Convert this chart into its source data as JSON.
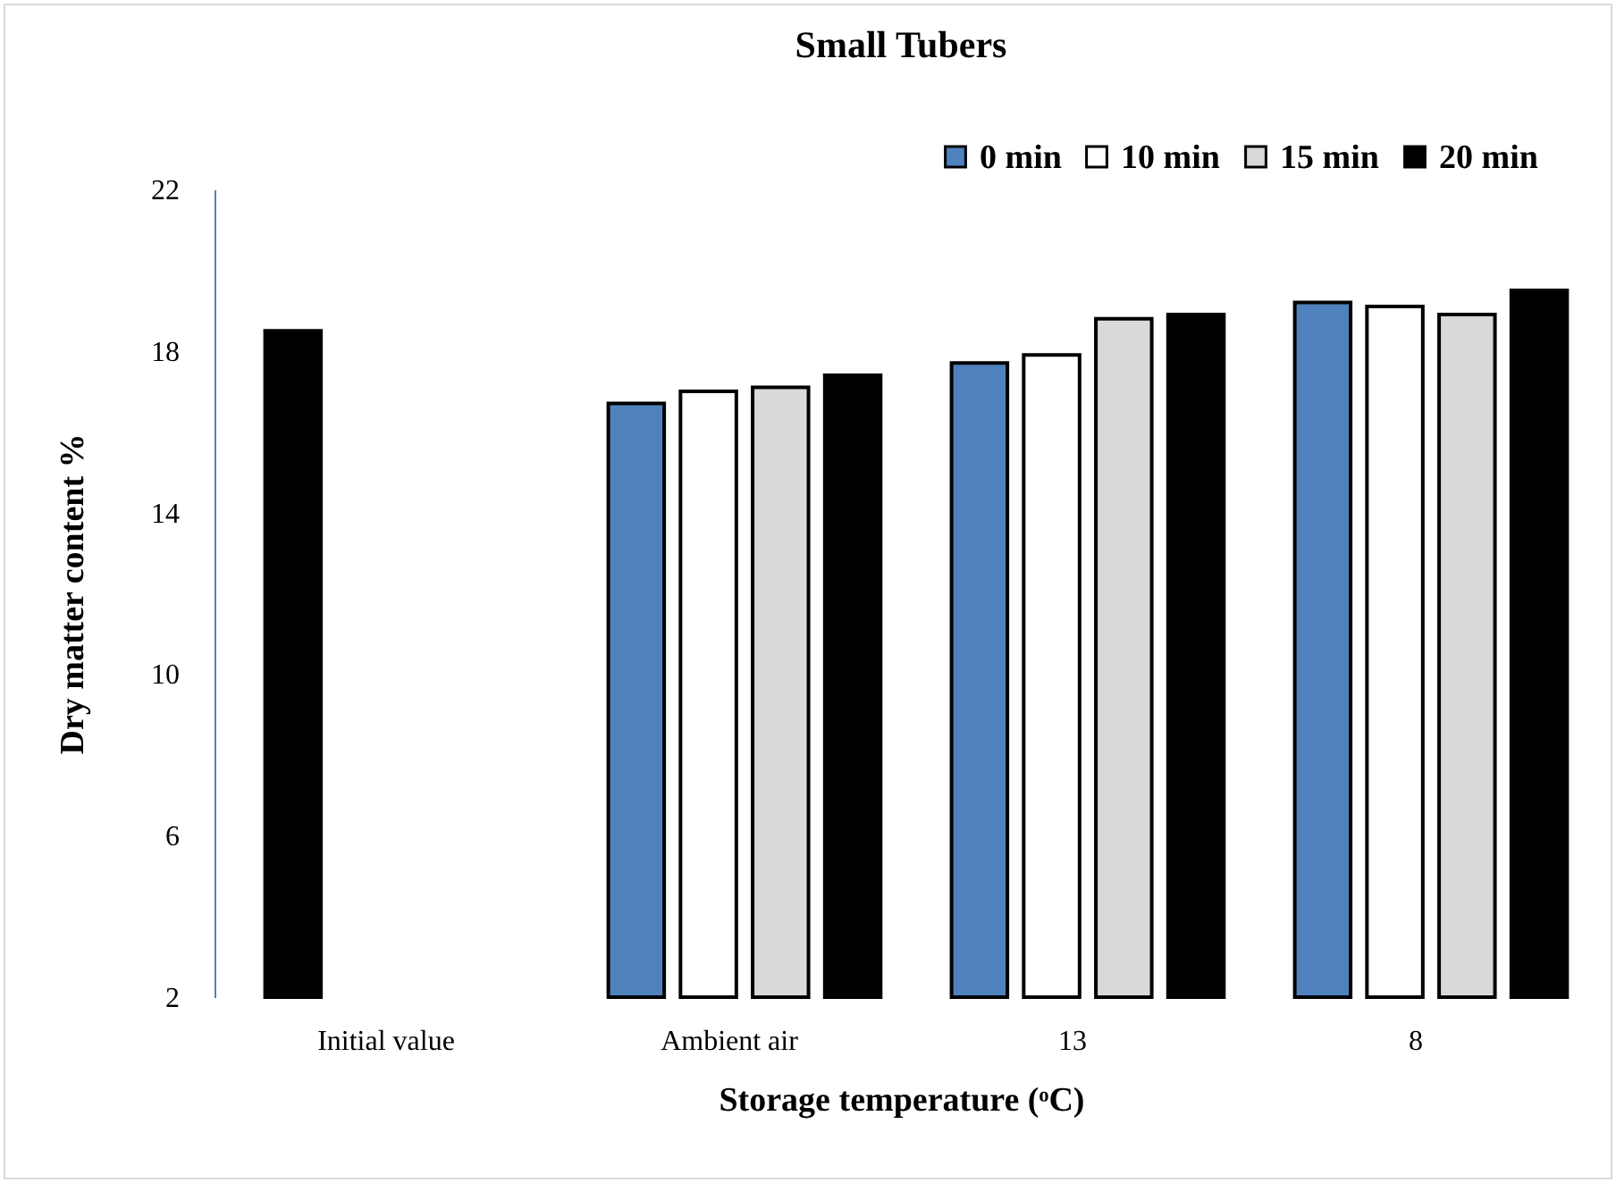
{
  "chart_data": {
    "type": "bar",
    "title": "Small Tubers",
    "xlabel": "Storage temperature (ᵒC)",
    "ylabel": "Dry matter content %",
    "categories": [
      "Initial value",
      "Ambient air",
      "13",
      "8"
    ],
    "series": [
      {
        "name": "0 min",
        "color": "#4f81bd",
        "colors": [
          "#000000",
          "#4f81bd",
          "#4f81bd",
          "#4f81bd"
        ],
        "values": [
          18.5,
          16.7,
          17.7,
          19.2
        ]
      },
      {
        "name": "10 min",
        "color": "#ffffff",
        "values": [
          null,
          17.0,
          17.9,
          19.1
        ]
      },
      {
        "name": "15 min",
        "color": "#d9d9d9",
        "values": [
          null,
          17.1,
          18.8,
          18.9
        ]
      },
      {
        "name": "20 min",
        "color": "#000000",
        "values": [
          null,
          17.4,
          18.9,
          19.5
        ]
      }
    ],
    "ylim": [
      2,
      22
    ],
    "yticks": [
      2,
      6,
      10,
      14,
      18,
      22
    ],
    "legend": "top right"
  }
}
